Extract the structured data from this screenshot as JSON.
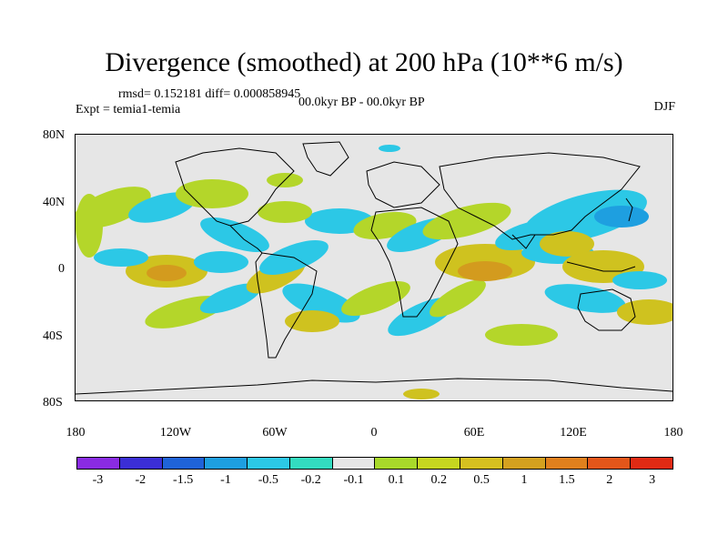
{
  "title": "Divergence (smoothed) at 200 hPa (10**6 m/s)",
  "stats": "rmsd= 0.152181 diff= 0.000858945",
  "experiment": "Expt = temia1-temia",
  "period": "00.0kyr BP - 00.0kyr BP",
  "season": "DJF",
  "lat_labels": [
    "80N",
    "40N",
    "0",
    "40S",
    "80S"
  ],
  "lon_labels": [
    "180",
    "120W",
    "60W",
    "0",
    "60E",
    "120E",
    "180"
  ],
  "colorbar": {
    "labels": [
      "-3",
      "-2",
      "-1.5",
      "-1",
      "-0.5",
      "-0.2",
      "-0.1",
      "0.1",
      "0.2",
      "0.5",
      "1",
      "1.5",
      "2",
      "3"
    ],
    "colors": [
      "#8a2be2",
      "#3b2ed6",
      "#1f63d8",
      "#1e9fe0",
      "#2cc8e6",
      "#33dcc0",
      "#e6e6e6",
      "#a8d92a",
      "#c6d620",
      "#d6c020",
      "#d4a11f",
      "#e0801d",
      "#e3561a",
      "#e02a14"
    ]
  },
  "colors": {
    "land_outline": "#000000",
    "ocean_bg": "#e6e6e6",
    "pos_weak": "#b4d62a",
    "pos_mid": "#cfc21f",
    "pos_strong": "#d39b1e",
    "neg_weak": "#33dcc0",
    "neg_mid": "#2cc8e6",
    "neg_strong": "#1e9fe0"
  }
}
